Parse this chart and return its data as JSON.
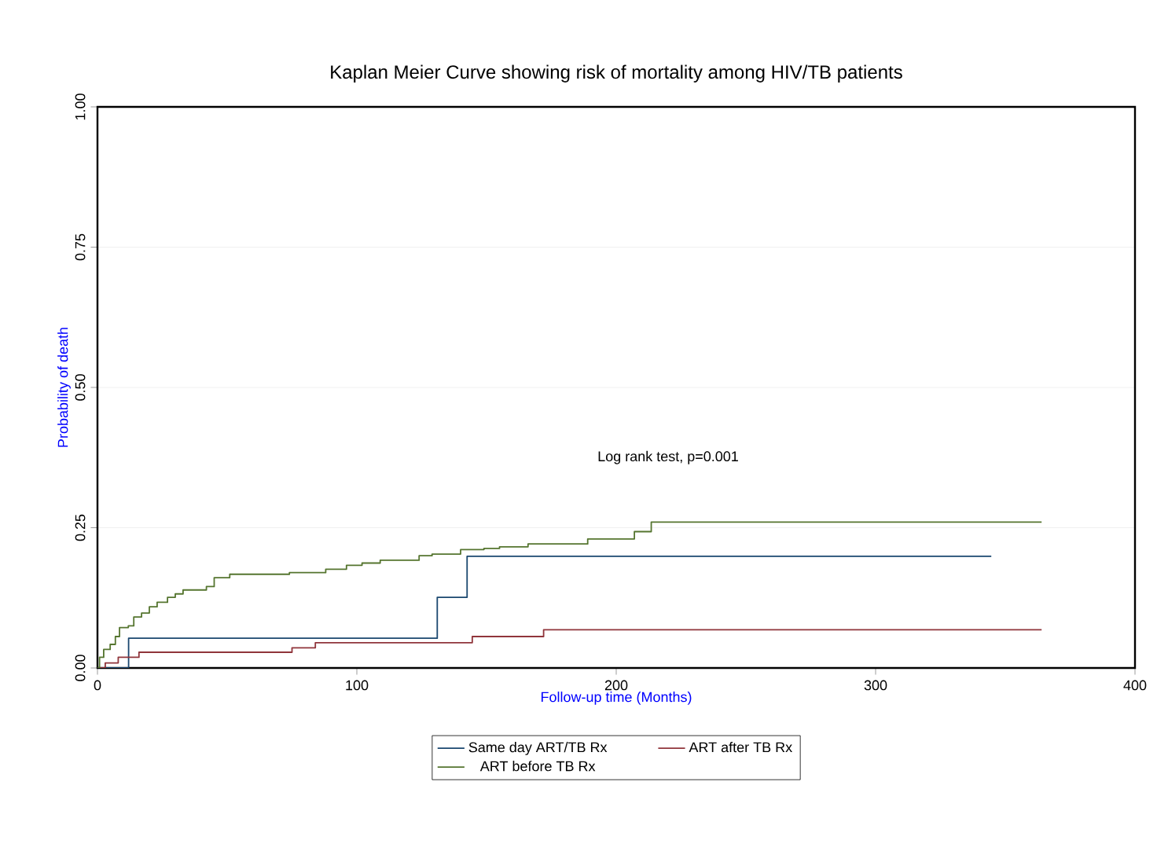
{
  "chart_data": {
    "type": "step",
    "title": "Kaplan Meier Curve showing risk of mortality among HIV/TB patients",
    "xlabel": "Follow-up time (Months)",
    "ylabel": "Probability of death",
    "annotations": [
      "Log rank test, p=0.001"
    ],
    "xlim": [
      0,
      400
    ],
    "xticks": [
      0,
      100,
      200,
      300,
      400
    ],
    "ylim": [
      0,
      1
    ],
    "yticks": [
      {
        "value": 0,
        "label": "0.00"
      },
      {
        "value": 0.25,
        "label": "0.25"
      },
      {
        "value": 0.5,
        "label": "0.50"
      },
      {
        "value": 0.75,
        "label": "0.75"
      },
      {
        "value": 1,
        "label": "1.00"
      }
    ],
    "grid": "y",
    "legend": "bottom",
    "series": [
      {
        "name": "Same day ART/TB Rx",
        "color": "#1a476f",
        "x": [
          0,
          12,
          131,
          142.5,
          344.6
        ],
        "values": [
          0,
          0.053,
          0.126,
          0.199,
          0.199
        ]
      },
      {
        "name": "ART after TB Rx",
        "color": "#90353b",
        "x": [
          0,
          3,
          8,
          16,
          75,
          84,
          144.5,
          172,
          364
        ],
        "values": [
          0,
          0.009,
          0.019,
          0.028,
          0.036,
          0.045,
          0.056,
          0.068,
          0.068
        ]
      },
      {
        "name": "ART before TB Rx",
        "color": "#55752f",
        "x": [
          0,
          0.8,
          2.4,
          4.9,
          6.9,
          8.5,
          11.9,
          14,
          17,
          20,
          23,
          27,
          30,
          33,
          42,
          45,
          51,
          74,
          88,
          96,
          102,
          109,
          124,
          129,
          140,
          149,
          155,
          166,
          189,
          207,
          213.5,
          364
        ],
        "values": [
          0,
          0.019,
          0.033,
          0.042,
          0.056,
          0.072,
          0.075,
          0.091,
          0.098,
          0.109,
          0.117,
          0.126,
          0.132,
          0.139,
          0.145,
          0.161,
          0.167,
          0.17,
          0.176,
          0.183,
          0.187,
          0.192,
          0.2,
          0.203,
          0.211,
          0.213,
          0.216,
          0.221,
          0.23,
          0.243,
          0.26,
          0.26
        ]
      }
    ]
  }
}
